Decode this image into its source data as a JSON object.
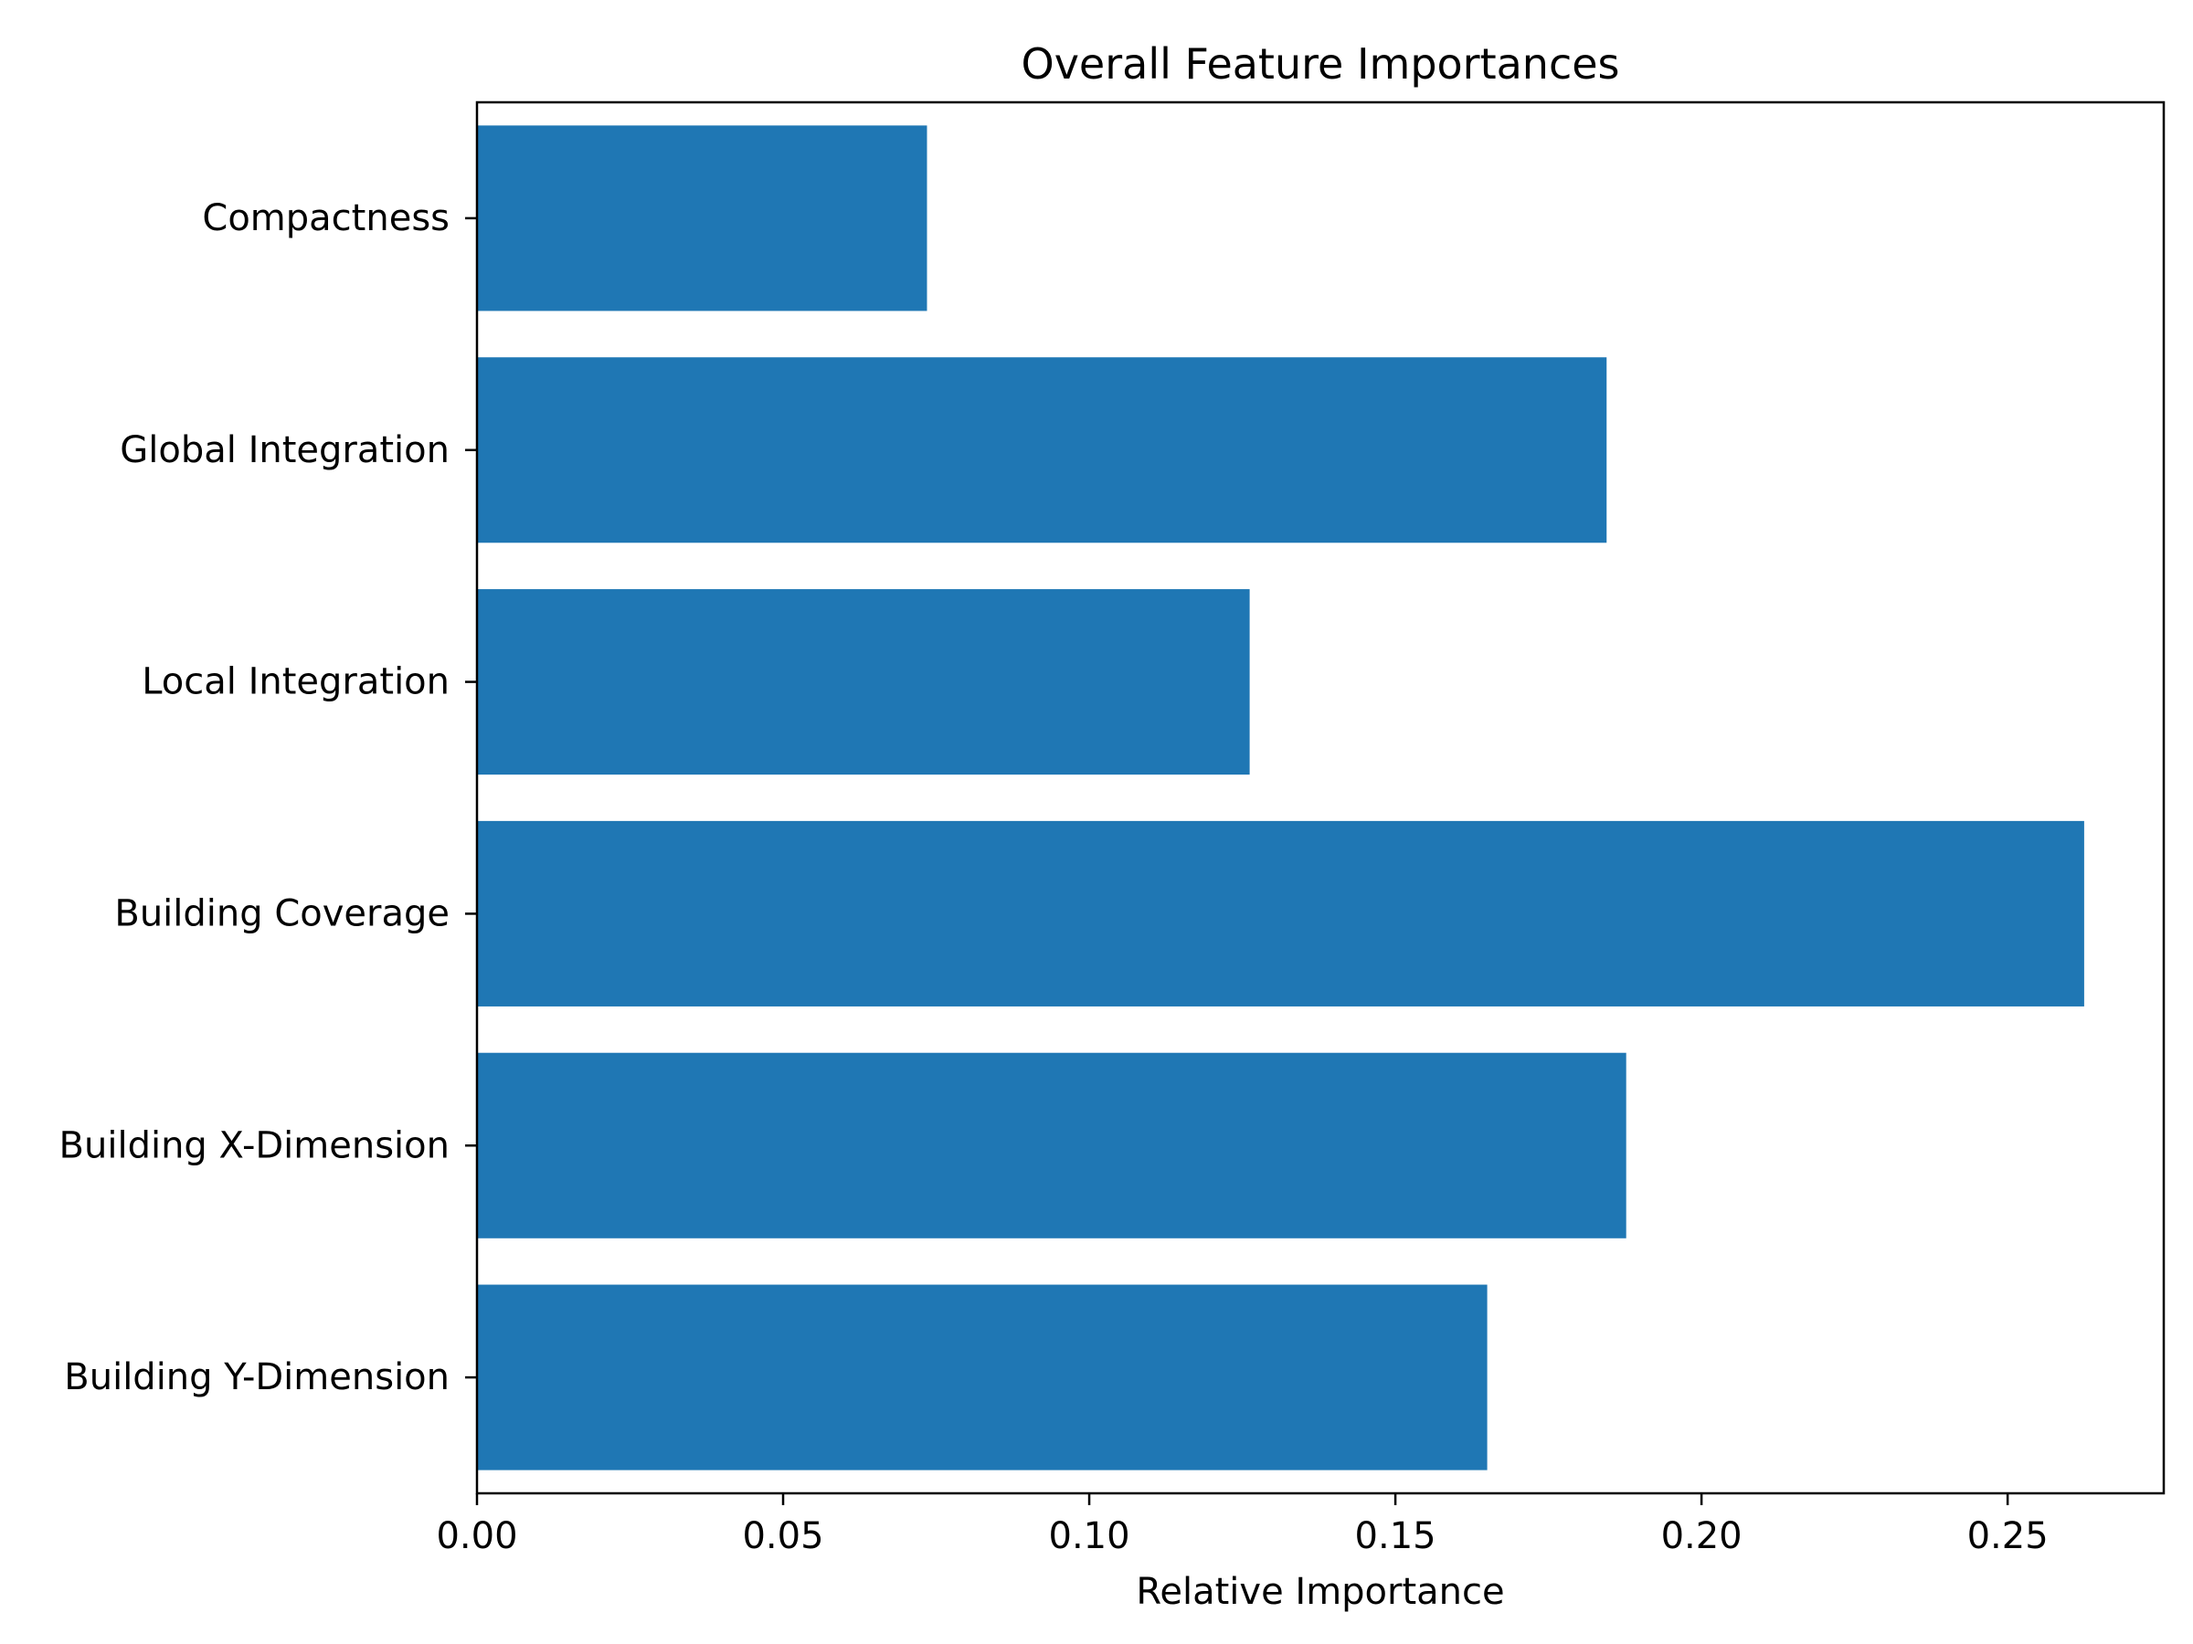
{
  "chart_data": {
    "type": "bar",
    "orientation": "horizontal",
    "title": "Overall Feature Importances",
    "xlabel": "Relative Importance",
    "ylabel": "",
    "categories": [
      "Compactness",
      "Global Integration",
      "Local Integration",
      "Building Coverage",
      "Building X-Dimension",
      "Building Y-Dimension"
    ],
    "values": [
      0.0735,
      0.1845,
      0.1262,
      0.2625,
      0.1877,
      0.165
    ],
    "xlim": [
      0,
      0.2755
    ],
    "xticks": [
      0.0,
      0.05,
      0.1,
      0.15,
      0.2,
      0.25
    ],
    "xtick_labels": [
      "0.00",
      "0.05",
      "0.10",
      "0.15",
      "0.20",
      "0.25"
    ],
    "bar_color": "#1f77b4",
    "grid": false,
    "legend": "none"
  }
}
